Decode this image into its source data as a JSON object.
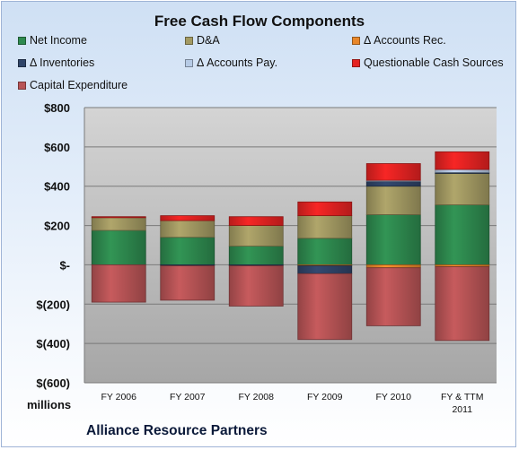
{
  "chart_data": {
    "type": "bar",
    "stacked": true,
    "title": "Free Cash Flow Components",
    "ylabel": "",
    "xlabel": "",
    "y_unit_label": "millions",
    "ylim": [
      -600,
      800
    ],
    "yticks": [
      -600,
      -400,
      -200,
      0,
      200,
      400,
      600,
      800
    ],
    "ytick_labels": [
      "$(600)",
      "$(400)",
      "$(200)",
      "$-",
      "$200",
      "$400",
      "$600",
      "$800"
    ],
    "categories": [
      "FY 2006",
      "FY 2007",
      "FY 2008",
      "FY 2009",
      "FY 2010",
      "FY & TTM 2011"
    ],
    "grid": true,
    "legend_position": "top",
    "series": [
      {
        "name": "Net Income",
        "color": "#2e8a4f",
        "values": [
          175,
          140,
          95,
          135,
          255,
          305
        ]
      },
      {
        "name": "D&A",
        "color": "#a39a63",
        "values": [
          65,
          85,
          105,
          115,
          145,
          160
        ]
      },
      {
        "name": "Δ Accounts Rec.",
        "color": "#e8872a",
        "values": [
          0,
          0,
          0,
          -5,
          -15,
          -10
        ]
      },
      {
        "name": "Δ Inventories",
        "color": "#2f4468",
        "values": [
          0,
          -5,
          -5,
          -40,
          25,
          5
        ]
      },
      {
        "name": "Δ Accounts Pay.",
        "color": "#b7cbe6",
        "values": [
          0,
          0,
          0,
          0,
          5,
          15
        ]
      },
      {
        "name": "Questionable Cash Sources",
        "color": "#e52322",
        "values": [
          5,
          25,
          45,
          70,
          85,
          90
        ]
      },
      {
        "name": "Capital Expenditure",
        "color": "#b85456",
        "values": [
          -190,
          -175,
          -205,
          -335,
          -295,
          -375
        ]
      }
    ]
  },
  "footer": {
    "brand": "Alliance Resource Partners"
  }
}
